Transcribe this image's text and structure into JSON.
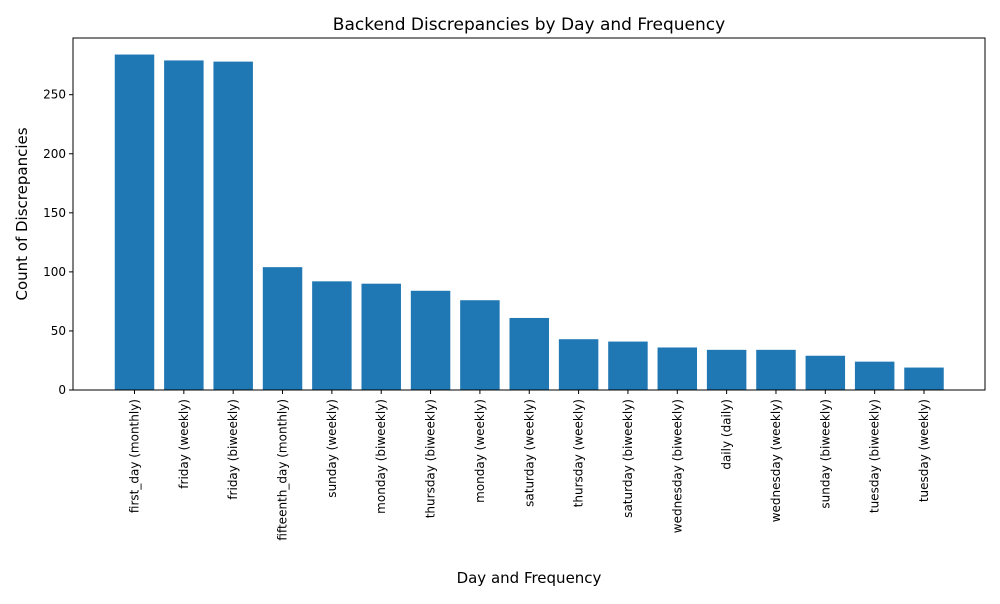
{
  "chart_data": {
    "type": "bar",
    "title": "Backend Discrepancies by Day and Frequency",
    "xlabel": "Day and Frequency",
    "ylabel": "Count of Discrepancies",
    "categories": [
      "first_day (monthly)",
      "friday (weekly)",
      "friday (biweekly)",
      "fifteenth_day (monthly)",
      "sunday (weekly)",
      "monday (biweekly)",
      "thursday (biweekly)",
      "monday (weekly)",
      "saturday (weekly)",
      "thursday (weekly)",
      "saturday (biweekly)",
      "wednesday (biweekly)",
      "daily (daily)",
      "wednesday (weekly)",
      "sunday (biweekly)",
      "tuesday (biweekly)",
      "tuesday (weekly)"
    ],
    "values": [
      284,
      279,
      278,
      104,
      92,
      90,
      84,
      76,
      61,
      43,
      41,
      36,
      34,
      34,
      29,
      24,
      19
    ],
    "ylim": [
      0,
      298
    ],
    "yticks": [
      0,
      50,
      100,
      150,
      200,
      250
    ],
    "bar_color": "#1f77b4",
    "grid": false,
    "legend": "none"
  }
}
